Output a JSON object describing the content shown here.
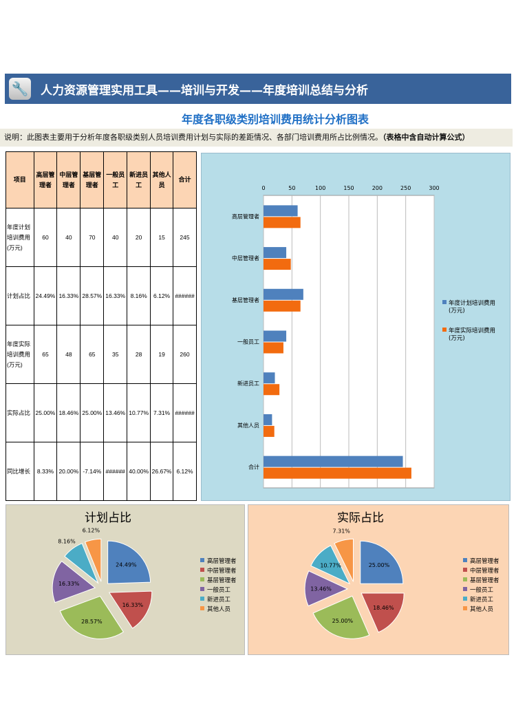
{
  "header": {
    "title": "人力资源管理实用工具——培训与开发——年度培训总结与分析",
    "icon": "wrench-icon"
  },
  "subtitle": "年度各职级类别培训费用统计分析图表",
  "description": {
    "text": "说明：此图表主要用于分析年度各职级类别人员培训费用计划与实际的差距情况、各部门培训费用所占比例情况。",
    "bold": "（表格中含自动计算公式）"
  },
  "table": {
    "headers": [
      "项目",
      "高层管理者",
      "中层管理者",
      "基层管理者",
      "一般员工",
      "新进员工",
      "其他人员",
      "合计"
    ],
    "rows": [
      [
        "年度计划培训费用(万元)",
        "60",
        "40",
        "70",
        "40",
        "20",
        "15",
        "245"
      ],
      [
        "计划占比",
        "24.49%",
        "16.33%",
        "28.57%",
        "16.33%",
        "8.16%",
        "6.12%",
        "######"
      ],
      [
        "年度实际培训费用(万元)",
        "65",
        "48",
        "65",
        "35",
        "28",
        "19",
        "260"
      ],
      [
        "实际占比",
        "25.00%",
        "18.46%",
        "25.00%",
        "13.46%",
        "10.77%",
        "7.31%",
        "######"
      ],
      [
        "同比增长",
        "8.33%",
        "20.00%",
        "-7.14%",
        "######",
        "40.00%",
        "26.67%",
        "6.12%"
      ]
    ]
  },
  "chart_data": [
    {
      "type": "bar",
      "orientation": "horizontal",
      "categories": [
        "高层管理者",
        "中层管理者",
        "基层管理者",
        "一般员工",
        "新进员工",
        "其他人员",
        "合计"
      ],
      "series": [
        {
          "name": "年度计划培训费用(万元)",
          "values": [
            60,
            40,
            70,
            40,
            20,
            15,
            245
          ],
          "color": "#4f81bd"
        },
        {
          "name": "年度实际培训费用(万元)",
          "values": [
            65,
            48,
            65,
            35,
            28,
            19,
            260
          ],
          "color": "#f26b0f"
        }
      ],
      "xlim": [
        0,
        300
      ],
      "ticks": [
        "0",
        "50",
        "100",
        "150",
        "200",
        "250",
        "300"
      ],
      "grid": true,
      "legend": "right"
    },
    {
      "type": "pie",
      "title": "计划占比",
      "labels": [
        "高层管理者",
        "中层管理者",
        "基层管理者",
        "一般员工",
        "新进员工",
        "其他人员"
      ],
      "values": [
        24.49,
        16.33,
        28.57,
        16.33,
        8.16,
        6.12
      ],
      "data_labels": [
        "24.49%",
        "16.33%",
        "28.57%",
        "16.33%",
        "8.16%",
        "6.12%"
      ],
      "legend": "right"
    },
    {
      "type": "pie",
      "title": "实际占比",
      "labels": [
        "高层管理者",
        "中层管理者",
        "基层管理者",
        "一般员工",
        "新进员工",
        "其他人员"
      ],
      "values": [
        25.0,
        18.46,
        25.0,
        13.46,
        10.77,
        7.31
      ],
      "data_labels": [
        "25.00%",
        "18.46%",
        "25.00%",
        "13.46%",
        "10.77%",
        "7.31%"
      ],
      "legend": "right"
    }
  ],
  "pie_colors": [
    "#4f81bd",
    "#c0504d",
    "#9bbb59",
    "#8064a2",
    "#4bacc6",
    "#f79646"
  ]
}
